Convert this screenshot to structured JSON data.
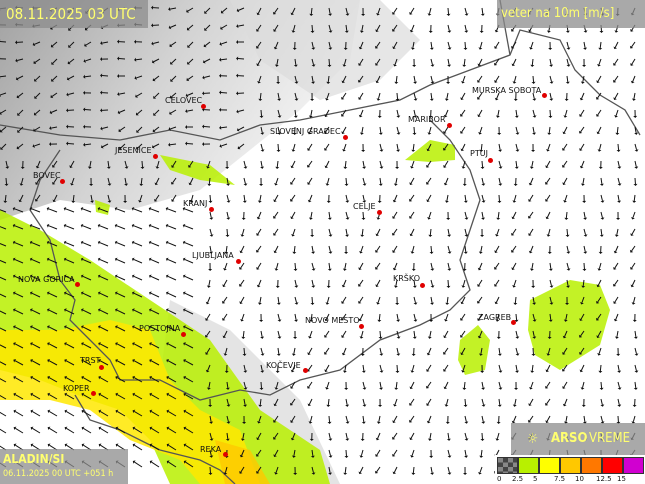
{
  "header": {
    "datetime": "08.11.2025 03 UTC",
    "parameter": "veter na 10m [m/s]"
  },
  "model": {
    "name": "ALADIN/SI",
    "run": "06.11.2025 00 UTC +051 h"
  },
  "brand": {
    "name_bold": "ARSO",
    "name_light": "VREME",
    "icon": "sun-icon"
  },
  "legend": {
    "ticks": [
      "0",
      "2.5",
      "5",
      "7.5",
      "10",
      "12.5",
      "15"
    ],
    "colors": [
      "#555555",
      "#b8f000",
      "#ffff00",
      "#ffc800",
      "#ff7800",
      "#ff0000",
      "#d000d0"
    ]
  },
  "cities": [
    {
      "name": "CELOVEC"
    },
    {
      "name": "SLOVENJ GRADEC"
    },
    {
      "name": "MARIBOR"
    },
    {
      "name": "MURSKA SOBOTA"
    },
    {
      "name": "JESENICE"
    },
    {
      "name": "PTUJ"
    },
    {
      "name": "BOVEC"
    },
    {
      "name": "KRANJ"
    },
    {
      "name": "CELJE"
    },
    {
      "name": "LJUBLJANA"
    },
    {
      "name": "NOVA GORICA"
    },
    {
      "name": "KRŠKO"
    },
    {
      "name": "ZAGREB"
    },
    {
      "name": "NOVO MESTO"
    },
    {
      "name": "POSTOJNA"
    },
    {
      "name": "KOČEVJE"
    },
    {
      "name": "TRST"
    },
    {
      "name": "KOPER"
    },
    {
      "name": "REKA"
    }
  ]
}
